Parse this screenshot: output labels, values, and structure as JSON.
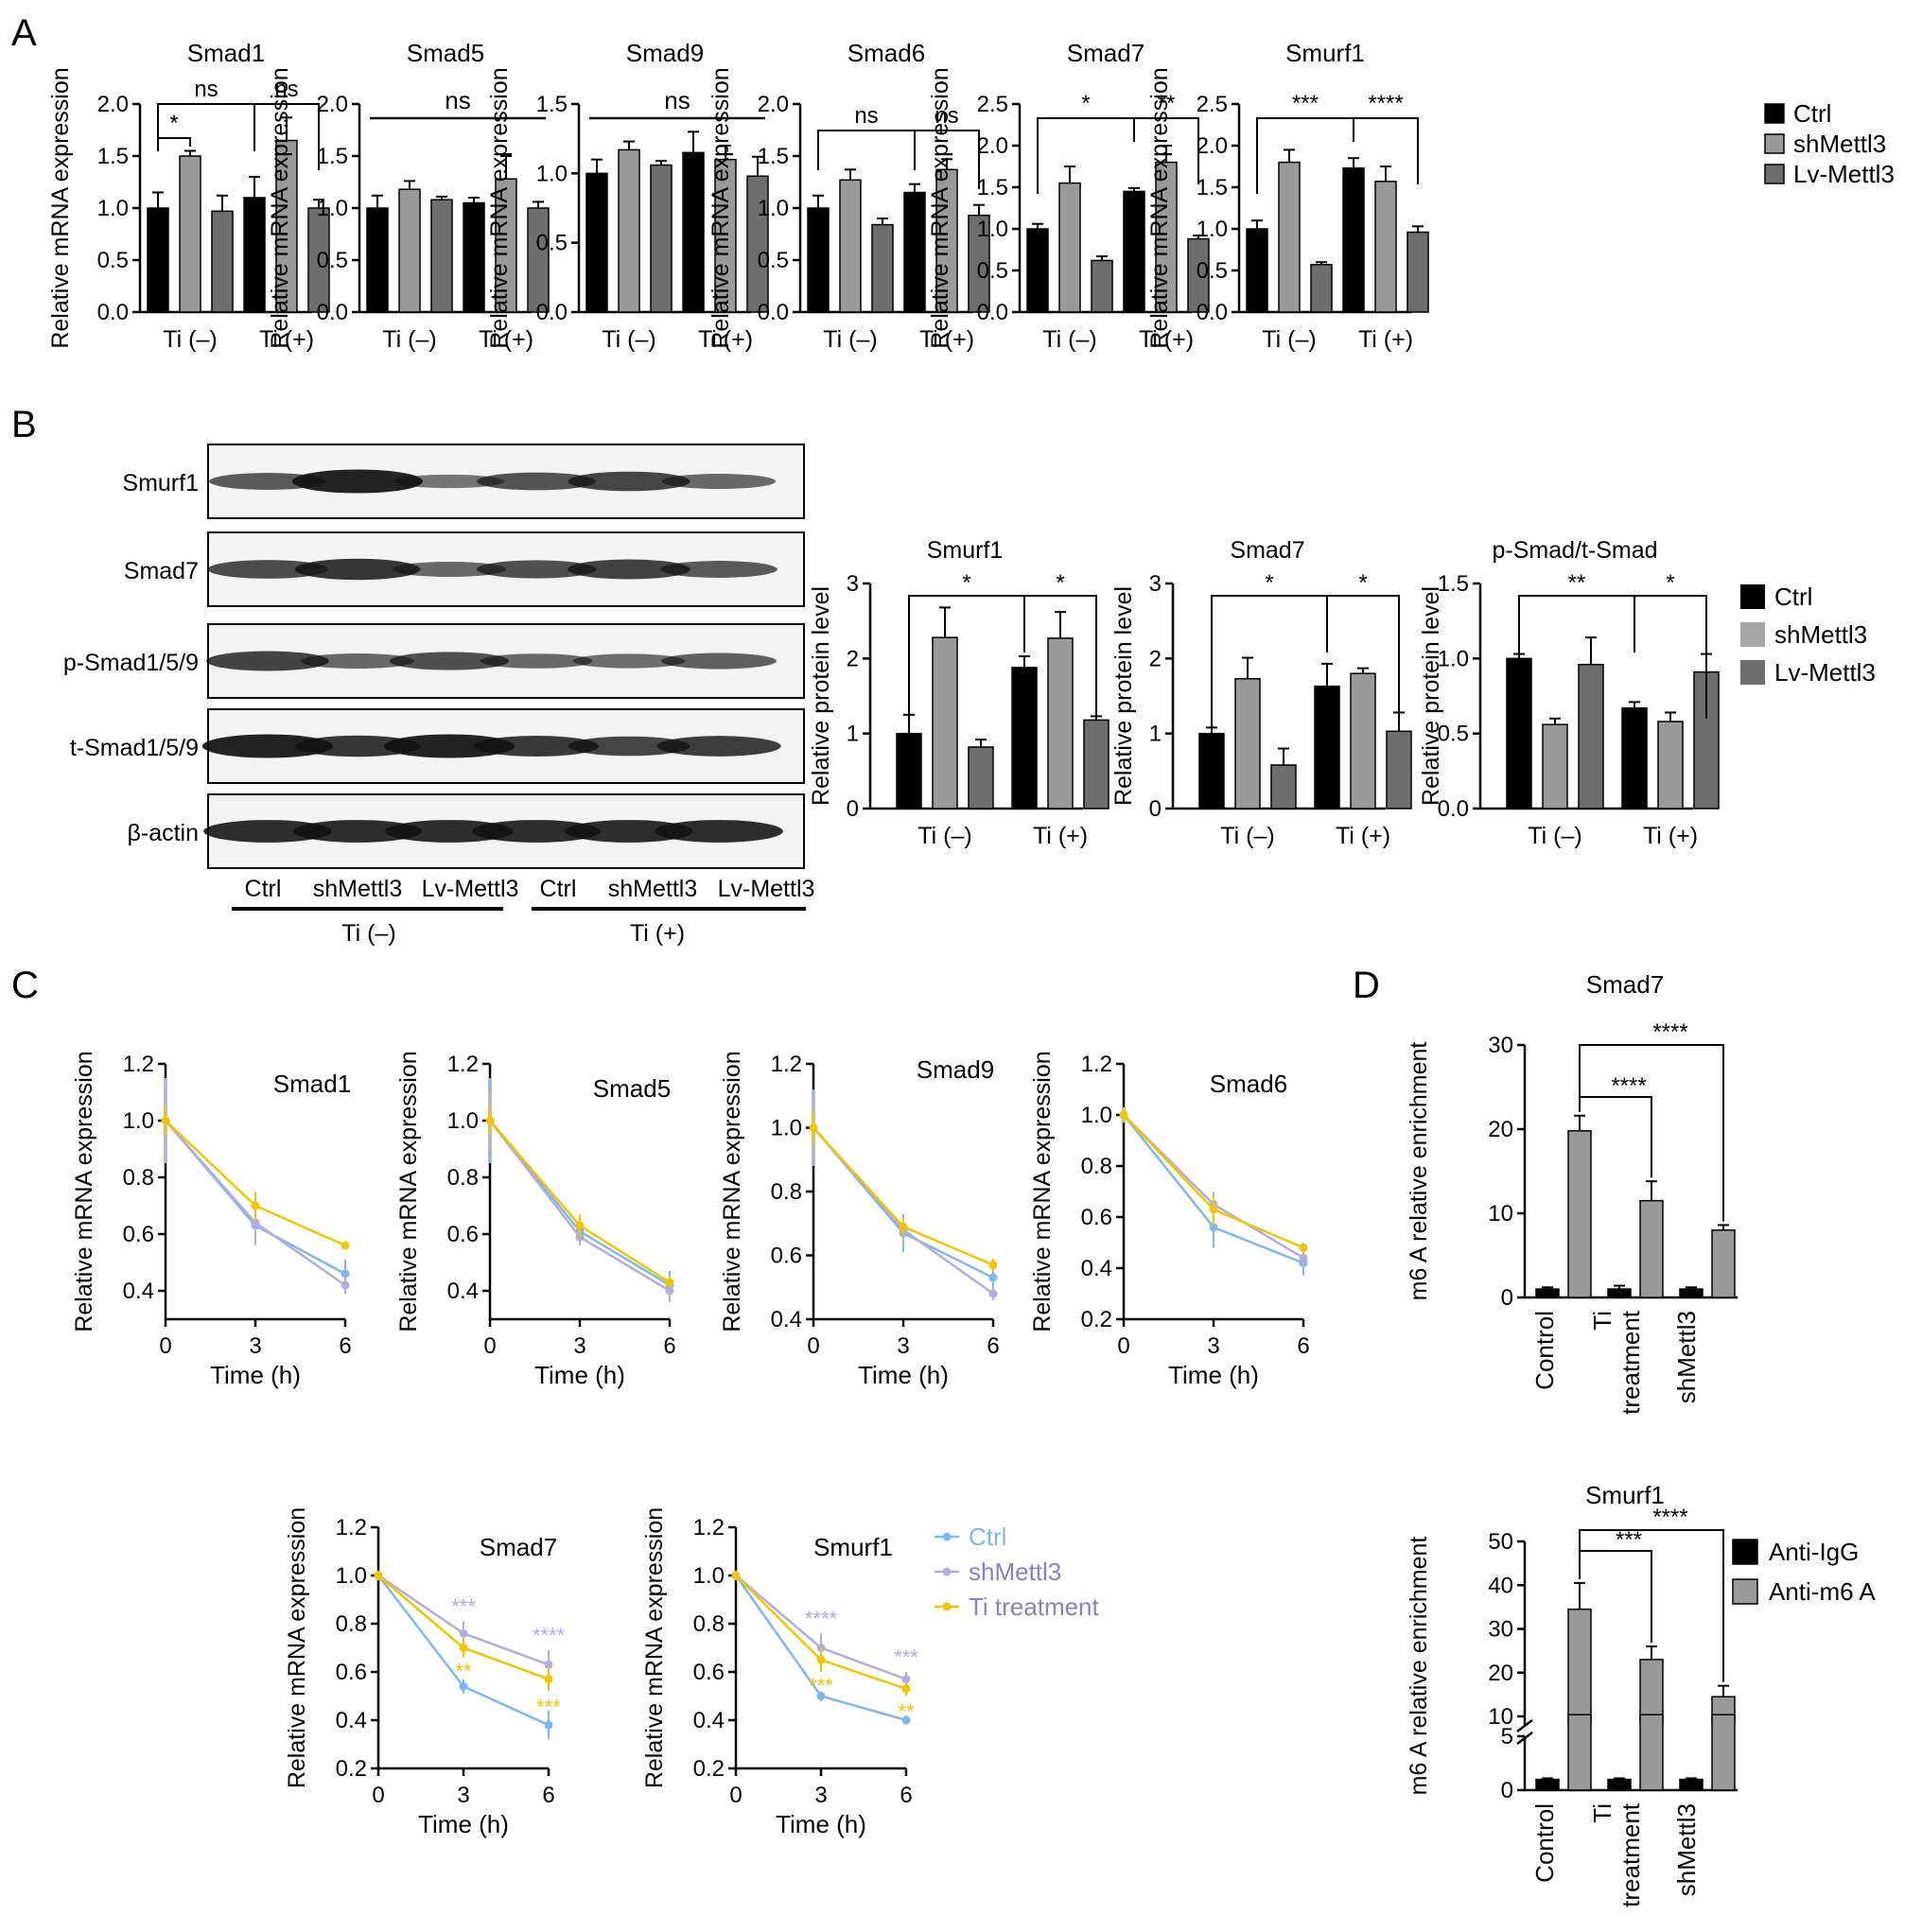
{
  "panels": {
    "A": "A",
    "B": "B",
    "C": "C",
    "D": "D"
  },
  "colors": {
    "ctrl": "#000000",
    "sh": "#999999",
    "lv": "#6e6e6e",
    "line_ctrl": "#7db9ee",
    "line_sh": "#b4acdc",
    "line_ti": "#f2c500"
  },
  "a_legend": [
    "Ctrl",
    "shMettl3",
    "Lv-Mettl3"
  ],
  "b_legend": [
    "Ctrl",
    "shMettl3",
    "Lv-Mettl3"
  ],
  "c_legend": [
    "Ctrl",
    "shMettl3",
    "Ti treatment"
  ],
  "d_legend": [
    "Anti-IgG",
    "Anti-m6 A"
  ],
  "blot": {
    "rows": [
      "Smurf1",
      "Smad7",
      "p-Smad1/5/9",
      "t-Smad1/5/9",
      "β-actin"
    ],
    "lanes": [
      "Ctrl",
      "shMettl3",
      "Lv-Mettl3",
      "Ctrl",
      "shMettl3",
      "Lv-Mettl3"
    ],
    "groups": [
      "Ti (–)",
      "Ti (+)"
    ],
    "intensity": [
      [
        0.55,
        0.95,
        0.35,
        0.6,
        0.7,
        0.45
      ],
      [
        0.65,
        0.8,
        0.45,
        0.62,
        0.72,
        0.55
      ],
      [
        0.72,
        0.45,
        0.62,
        0.42,
        0.4,
        0.5
      ],
      [
        0.95,
        0.8,
        0.95,
        0.78,
        0.7,
        0.76
      ],
      [
        0.88,
        0.88,
        0.88,
        0.88,
        0.88,
        0.88
      ]
    ]
  },
  "chart_data": [
    {
      "type": "bar",
      "panel": "A",
      "title": "Smad1",
      "ylabel": "Relative mRNA expression",
      "categories": [
        "Ti (–)",
        "Ti (+)"
      ],
      "ylim": [
        0,
        2.0
      ],
      "yticks": [
        "0.0",
        "0.5",
        "1.0",
        "1.5",
        "2.0"
      ],
      "series": [
        {
          "name": "Ctrl",
          "values": [
            1.0,
            1.1
          ],
          "err": [
            0.15,
            0.2
          ]
        },
        {
          "name": "shMettl3",
          "values": [
            1.5,
            1.65
          ],
          "err": [
            0.05,
            0.22
          ]
        },
        {
          "name": "Lv-Mettl3",
          "values": [
            0.97,
            1.0
          ],
          "err": [
            0.15,
            0.08
          ]
        }
      ],
      "annotations": [
        {
          "text": "*"
        },
        {
          "text": "ns"
        },
        {
          "text": "ns"
        }
      ]
    },
    {
      "type": "bar",
      "panel": "A",
      "title": "Smad5",
      "ylabel": "Relative mRNA expression",
      "categories": [
        "Ti (–)",
        "Ti (+)"
      ],
      "ylim": [
        0,
        2.0
      ],
      "yticks": [
        "0.0",
        "0.5",
        "1.0",
        "1.5",
        "2.0"
      ],
      "series": [
        {
          "name": "Ctrl",
          "values": [
            1.0,
            1.05
          ],
          "err": [
            0.12,
            0.05
          ]
        },
        {
          "name": "shMettl3",
          "values": [
            1.18,
            1.28
          ],
          "err": [
            0.08,
            0.22
          ]
        },
        {
          "name": "Lv-Mettl3",
          "values": [
            1.08,
            1.0
          ],
          "err": [
            0.03,
            0.06
          ]
        }
      ],
      "annotations": [
        {
          "text": "ns"
        }
      ]
    },
    {
      "type": "bar",
      "panel": "A",
      "title": "Smad9",
      "ylabel": "Relative mRNA expression",
      "categories": [
        "Ti (–)",
        "Ti (+)"
      ],
      "ylim": [
        0,
        1.5
      ],
      "yticks": [
        "0.0",
        "0.5",
        "1.0",
        "1.5"
      ],
      "series": [
        {
          "name": "Ctrl",
          "values": [
            1.0,
            1.15
          ],
          "err": [
            0.1,
            0.15
          ]
        },
        {
          "name": "shMettl3",
          "values": [
            1.17,
            1.1
          ],
          "err": [
            0.06,
            0.1
          ]
        },
        {
          "name": "Lv-Mettl3",
          "values": [
            1.06,
            0.98
          ],
          "err": [
            0.03,
            0.14
          ]
        }
      ],
      "annotations": [
        {
          "text": "ns"
        }
      ]
    },
    {
      "type": "bar",
      "panel": "A",
      "title": "Smad6",
      "ylabel": "Relative mRNA expression",
      "categories": [
        "Ti (–)",
        "Ti (+)"
      ],
      "ylim": [
        0,
        2.0
      ],
      "yticks": [
        "0.0",
        "0.5",
        "1.0",
        "1.5",
        "2.0"
      ],
      "series": [
        {
          "name": "Ctrl",
          "values": [
            1.0,
            1.15
          ],
          "err": [
            0.12,
            0.08
          ]
        },
        {
          "name": "shMettl3",
          "values": [
            1.27,
            1.37
          ],
          "err": [
            0.1,
            0.1
          ]
        },
        {
          "name": "Lv-Mettl3",
          "values": [
            0.84,
            0.93
          ],
          "err": [
            0.06,
            0.1
          ]
        }
      ],
      "annotations": [
        {
          "text": "ns"
        },
        {
          "text": "ns"
        }
      ]
    },
    {
      "type": "bar",
      "panel": "A",
      "title": "Smad7",
      "ylabel": "Relative mRNA expression",
      "categories": [
        "Ti (–)",
        "Ti (+)"
      ],
      "ylim": [
        0,
        2.5
      ],
      "yticks": [
        "0.0",
        "0.5",
        "1.0",
        "1.5",
        "2.0",
        "2.5"
      ],
      "series": [
        {
          "name": "Ctrl",
          "values": [
            1.0,
            1.45
          ],
          "err": [
            0.06,
            0.04
          ]
        },
        {
          "name": "shMettl3",
          "values": [
            1.55,
            1.8
          ],
          "err": [
            0.2,
            0.2
          ]
        },
        {
          "name": "Lv-Mettl3",
          "values": [
            0.62,
            0.88
          ],
          "err": [
            0.05,
            0.04
          ]
        }
      ],
      "annotations": [
        {
          "text": "*"
        },
        {
          "text": "**"
        }
      ]
    },
    {
      "type": "bar",
      "panel": "A",
      "title": "Smurf1",
      "ylabel": "Relative mRNA expression",
      "categories": [
        "Ti (–)",
        "Ti (+)"
      ],
      "ylim": [
        0,
        2.5
      ],
      "yticks": [
        "0.0",
        "0.5",
        "1.0",
        "1.5",
        "2.0",
        "2.5"
      ],
      "series": [
        {
          "name": "Ctrl",
          "values": [
            1.0,
            1.73
          ],
          "err": [
            0.1,
            0.12
          ]
        },
        {
          "name": "shMettl3",
          "values": [
            1.8,
            1.57
          ],
          "err": [
            0.15,
            0.18
          ]
        },
        {
          "name": "Lv-Mettl3",
          "values": [
            0.57,
            0.96
          ],
          "err": [
            0.03,
            0.07
          ]
        }
      ],
      "annotations": [
        {
          "text": "***"
        },
        {
          "text": "****"
        }
      ]
    },
    {
      "type": "bar",
      "panel": "B",
      "title": "Smurf1",
      "ylabel": "Relative protein level",
      "categories": [
        "Ti (–)",
        "Ti (+)"
      ],
      "ylim": [
        0,
        3
      ],
      "yticks": [
        "0",
        "1",
        "2",
        "3"
      ],
      "series": [
        {
          "name": "Ctrl",
          "values": [
            1.0,
            1.88
          ],
          "err": [
            0.25,
            0.15
          ]
        },
        {
          "name": "shMettl3",
          "values": [
            2.28,
            2.27
          ],
          "err": [
            0.4,
            0.35
          ]
        },
        {
          "name": "Lv-Mettl3",
          "values": [
            0.82,
            1.18
          ],
          "err": [
            0.1,
            0.05
          ]
        }
      ],
      "annotations": [
        {
          "text": "*"
        },
        {
          "text": "*"
        }
      ]
    },
    {
      "type": "bar",
      "panel": "B",
      "title": "Smad7",
      "ylabel": "Relative protein level",
      "categories": [
        "Ti (–)",
        "Ti (+)"
      ],
      "ylim": [
        0,
        3
      ],
      "yticks": [
        "0",
        "1",
        "2",
        "3"
      ],
      "series": [
        {
          "name": "Ctrl",
          "values": [
            1.0,
            1.63
          ],
          "err": [
            0.08,
            0.3
          ]
        },
        {
          "name": "shMettl3",
          "values": [
            1.73,
            1.8
          ],
          "err": [
            0.28,
            0.07
          ]
        },
        {
          "name": "Lv-Mettl3",
          "values": [
            0.58,
            1.03
          ],
          "err": [
            0.22,
            0.25
          ]
        }
      ],
      "annotations": [
        {
          "text": "*"
        },
        {
          "text": "*"
        }
      ]
    },
    {
      "type": "bar",
      "panel": "B",
      "title": "p-Smad/t-Smad",
      "ylabel": "Relative protein level",
      "categories": [
        "Ti (–)",
        "Ti (+)"
      ],
      "ylim": [
        0,
        1.5
      ],
      "yticks": [
        "0.0",
        "0.5",
        "1.0",
        "1.5"
      ],
      "series": [
        {
          "name": "Ctrl",
          "values": [
            1.0,
            0.67
          ],
          "err": [
            0.03,
            0.04
          ]
        },
        {
          "name": "shMettl3",
          "values": [
            0.56,
            0.58
          ],
          "err": [
            0.04,
            0.06
          ]
        },
        {
          "name": "Lv-Mettl3",
          "values": [
            0.96,
            0.91
          ],
          "err": [
            0.18,
            0.12
          ]
        }
      ],
      "annotations": [
        {
          "text": "**"
        },
        {
          "text": "*"
        }
      ]
    },
    {
      "type": "line",
      "panel": "C",
      "title": "Smad1",
      "xlabel": "Time (h)",
      "ylabel": "Relative mRNA expression",
      "x": [
        0,
        3,
        6
      ],
      "ylim": [
        0.3,
        1.2
      ],
      "yticks": [
        "0.4",
        "0.6",
        "0.8",
        "1.0",
        "1.2"
      ],
      "series": [
        {
          "name": "Ctrl",
          "values": [
            1.0,
            0.63,
            0.46
          ],
          "err": [
            0.1,
            0.05,
            0.05
          ]
        },
        {
          "name": "shMettl3",
          "values": [
            1.0,
            0.64,
            0.42
          ],
          "err": [
            0.15,
            0.08,
            0.03
          ]
        },
        {
          "name": "Ti treatment",
          "values": [
            1.0,
            0.7,
            0.56
          ],
          "err": [
            0.05,
            0.05,
            0.01
          ]
        }
      ]
    },
    {
      "type": "line",
      "panel": "C",
      "title": "Smad5",
      "xlabel": "Time (h)",
      "ylabel": "Relative mRNA expression",
      "x": [
        0,
        3,
        6
      ],
      "ylim": [
        0.3,
        1.2
      ],
      "yticks": [
        "0.4",
        "0.6",
        "0.8",
        "1.0",
        "1.2"
      ],
      "series": [
        {
          "name": "Ctrl",
          "values": [
            1.0,
            0.61,
            0.42
          ],
          "err": [
            0.15,
            0.03,
            0.05
          ]
        },
        {
          "name": "shMettl3",
          "values": [
            1.0,
            0.59,
            0.4
          ],
          "err": [
            0.1,
            0.03,
            0.04
          ]
        },
        {
          "name": "Ti treatment",
          "values": [
            1.0,
            0.63,
            0.43
          ],
          "err": [
            0.05,
            0.04,
            0.02
          ]
        }
      ]
    },
    {
      "type": "line",
      "panel": "C",
      "title": "Smad9",
      "xlabel": "Time (h)",
      "ylabel": "Relative mRNA expression",
      "x": [
        0,
        3,
        6
      ],
      "ylim": [
        0.4,
        1.2
      ],
      "yticks": [
        "0.4",
        "0.6",
        "0.8",
        "1.0",
        "1.2"
      ],
      "series": [
        {
          "name": "Ctrl",
          "values": [
            1.0,
            0.67,
            0.53
          ],
          "err": [
            0.12,
            0.06,
            0.03
          ]
        },
        {
          "name": "shMettl3",
          "values": [
            1.0,
            0.68,
            0.48
          ],
          "err": [
            0.1,
            0.04,
            0.02
          ]
        },
        {
          "name": "Ti treatment",
          "values": [
            1.0,
            0.69,
            0.57
          ],
          "err": [
            0.05,
            0.03,
            0.02
          ]
        }
      ]
    },
    {
      "type": "line",
      "panel": "C",
      "title": "Smad6",
      "xlabel": "Time (h)",
      "ylabel": "Relative mRNA expression",
      "x": [
        0,
        3,
        6
      ],
      "ylim": [
        0.2,
        1.2
      ],
      "yticks": [
        "0.2",
        "0.4",
        "0.6",
        "0.8",
        "1.0",
        "1.2"
      ],
      "series": [
        {
          "name": "Ctrl",
          "values": [
            1.0,
            0.56,
            0.42
          ],
          "err": [
            0.03,
            0.08,
            0.05
          ]
        },
        {
          "name": "shMettl3",
          "values": [
            1.0,
            0.65,
            0.44
          ],
          "err": [
            0.03,
            0.05,
            0.04
          ]
        },
        {
          "name": "Ti treatment",
          "values": [
            1.0,
            0.63,
            0.48
          ],
          "err": [
            0.03,
            0.06,
            0.02
          ]
        }
      ]
    },
    {
      "type": "line",
      "panel": "C",
      "title": "Smad7",
      "xlabel": "Time (h)",
      "ylabel": "Relative mRNA expression",
      "x": [
        0,
        3,
        6
      ],
      "ylim": [
        0.2,
        1.2
      ],
      "yticks": [
        "0.2",
        "0.4",
        "0.6",
        "0.8",
        "1.0",
        "1.2"
      ],
      "series": [
        {
          "name": "Ctrl",
          "values": [
            1.0,
            0.54,
            0.38
          ],
          "err": [
            0.02,
            0.03,
            0.06
          ]
        },
        {
          "name": "shMettl3",
          "values": [
            1.0,
            0.76,
            0.63
          ],
          "err": [
            0.02,
            0.05,
            0.06
          ]
        },
        {
          "name": "Ti treatment",
          "values": [
            1.0,
            0.7,
            0.57
          ],
          "err": [
            0.02,
            0.04,
            0.05
          ]
        }
      ],
      "annotations": [
        {
          "text": "***",
          "series": "shMettl3"
        },
        {
          "text": "****",
          "series": "shMettl3"
        },
        {
          "text": "**",
          "series": "Ti treatment"
        },
        {
          "text": "***",
          "series": "Ti treatment"
        }
      ]
    },
    {
      "type": "line",
      "panel": "C",
      "title": "Smurf1",
      "xlabel": "Time (h)",
      "ylabel": "Relative mRNA expression",
      "x": [
        0,
        3,
        6
      ],
      "ylim": [
        0.2,
        1.2
      ],
      "yticks": [
        "0.2",
        "0.4",
        "0.6",
        "0.8",
        "1.0",
        "1.2"
      ],
      "series": [
        {
          "name": "Ctrl",
          "values": [
            1.0,
            0.5,
            0.4
          ],
          "err": [
            0.02,
            0.02,
            0.02
          ]
        },
        {
          "name": "shMettl3",
          "values": [
            1.0,
            0.7,
            0.57
          ],
          "err": [
            0.02,
            0.06,
            0.03
          ]
        },
        {
          "name": "Ti treatment",
          "values": [
            1.0,
            0.65,
            0.53
          ],
          "err": [
            0.02,
            0.05,
            0.03
          ]
        }
      ],
      "annotations": [
        {
          "text": "****",
          "series": "shMettl3"
        },
        {
          "text": "***",
          "series": "shMettl3"
        },
        {
          "text": "***",
          "series": "Ti treatment"
        },
        {
          "text": "**",
          "series": "Ti treatment"
        }
      ]
    },
    {
      "type": "bar",
      "panel": "D",
      "title": "Smad7",
      "ylabel": "m6 A relative enrichment",
      "categories": [
        "Control",
        "Ti treatment",
        "shMettl3"
      ],
      "ylim": [
        0,
        30
      ],
      "yticks": [
        "0",
        "10",
        "20",
        "30"
      ],
      "series": [
        {
          "name": "Anti-IgG",
          "values": [
            1.0,
            1.0,
            1.0
          ],
          "err": [
            0.2,
            0.4,
            0.2
          ]
        },
        {
          "name": "Anti-m6 A",
          "values": [
            19.8,
            11.5,
            8.0
          ],
          "err": [
            1.8,
            2.3,
            0.6
          ]
        }
      ],
      "annotations": [
        {
          "text": "****"
        },
        {
          "text": "****"
        }
      ]
    },
    {
      "type": "bar",
      "panel": "D",
      "title": "Smurf1",
      "ylabel": "m6 A relative enrichment",
      "categories": [
        "Control",
        "Ti treatment",
        "shMettl3"
      ],
      "ylim": [
        0,
        50
      ],
      "yticks": [
        "0",
        "5",
        "10",
        "20",
        "30",
        "40",
        "50"
      ],
      "broken_axis": true,
      "series": [
        {
          "name": "Anti-IgG",
          "values": [
            1.0,
            1.0,
            1.0
          ],
          "err": [
            0.1,
            0.1,
            0.1
          ]
        },
        {
          "name": "Anti-m6 A",
          "values": [
            34.5,
            23.0,
            14.5
          ],
          "err": [
            6.0,
            3.0,
            2.5
          ]
        }
      ],
      "annotations": [
        {
          "text": "***"
        },
        {
          "text": "****"
        }
      ]
    }
  ]
}
